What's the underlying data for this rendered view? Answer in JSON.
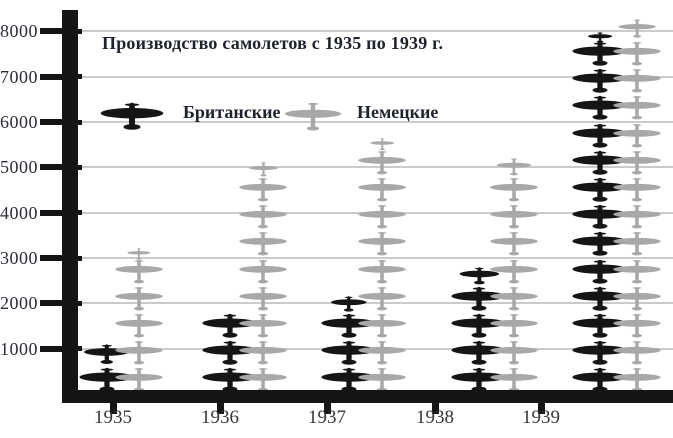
{
  "title": "Производство самолетов с 1935 по 1939 г.",
  "legend": {
    "british_label": "Британские",
    "german_label": "Немецкие"
  },
  "colors": {
    "british": "#151515",
    "german": "#a8a8a8",
    "gridline": "#cbcbcb",
    "axis": "#151515",
    "text_dark": "#1e222c",
    "text_axis": "#2b2e38"
  },
  "chart_data": {
    "type": "bar",
    "subtype": "pictogram-stack",
    "title": "Производство самолетов с 1935 по 1939 г.",
    "categories": [
      "1935",
      "1936",
      "1937",
      "1938",
      "1939"
    ],
    "series": [
      {
        "name": "Британские",
        "color": "#151515",
        "icon": "british-plane",
        "values": [
          1140,
          1877,
          2153,
          2827,
          7940
        ]
      },
      {
        "name": "Немецкие",
        "color": "#a8a8a8",
        "icon": "german-plane",
        "values": [
          3183,
          5112,
          5606,
          5235,
          8295
        ]
      }
    ],
    "unit_per_icon": 600,
    "xlabel": "",
    "ylabel": "",
    "ylim": [
      0,
      8400
    ],
    "yticks": [
      1000,
      2000,
      3000,
      4000,
      5000,
      6000,
      7000,
      8000
    ],
    "grid": true,
    "legend_position": "top-left-inside"
  }
}
